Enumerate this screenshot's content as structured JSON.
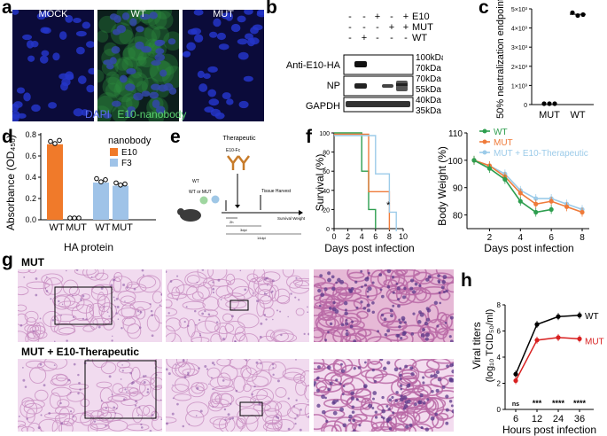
{
  "panels": {
    "a": "a",
    "b": "b",
    "c": "c",
    "d": "d",
    "e": "e",
    "f": "f",
    "g": "g",
    "h": "h"
  },
  "panel_a": {
    "images": [
      "MOCK",
      "WT",
      "MUT"
    ],
    "legend_dapi": "DAPI",
    "legend_e10": "E10-nanobody",
    "colors": {
      "dapi": "#3b50e0",
      "e10": "#3fbf5a"
    }
  },
  "panel_b": {
    "conditions": [
      {
        "label": "E10",
        "marks": [
          "-",
          "-",
          "+",
          "-",
          "+"
        ]
      },
      {
        "label": "MUT",
        "marks": [
          "-",
          "-",
          "-",
          "+",
          "+"
        ]
      },
      {
        "label": "WT",
        "marks": [
          "-",
          "+",
          "-",
          "-",
          "-"
        ]
      }
    ],
    "blots": [
      {
        "label": "Anti-E10-HA",
        "markers": [
          "100kDa",
          "70kDa"
        ]
      },
      {
        "label": "NP",
        "markers": [
          "70kDa",
          "55kDa"
        ]
      },
      {
        "label": "GAPDH",
        "markers": [
          "40kDa",
          "35kDa"
        ]
      }
    ]
  },
  "panel_c": {
    "ylabel": "50% neutralization endpoint",
    "y_ticks": [
      "0",
      "1×10³",
      "2×10³",
      "3×10³",
      "4×10³",
      "5×10³"
    ],
    "categories": [
      "MUT",
      "WT"
    ]
  },
  "panel_d": {
    "ylabel": "Absorbance (OD₄₅₀)",
    "y_ticks": [
      "0.0",
      "0.2",
      "0.4",
      "0.6",
      "0.8"
    ],
    "xlabel": "HA protein",
    "categories": [
      "WT",
      "MUT",
      "WT",
      "MUT"
    ],
    "legend_title": "nanobody",
    "legend": [
      "E10",
      "F3"
    ],
    "colors": {
      "E10": "#f07a2a",
      "F3": "#9fc3e8"
    }
  },
  "panel_e": {
    "therapeutic": "Therapeutic",
    "agent": "E10-Fc",
    "wt": "WT",
    "wt_or_mut": "WT or MUT",
    "harvest": "Tissue Harvest",
    "time_2h": "2h",
    "time_3dpi": "3dpi",
    "time_14dpi": "14dpi",
    "endpoint": "Survival Weight Loss Disease"
  },
  "panel_f": {
    "survival_ylabel": "Survival (%)",
    "survival_ticks_y": [
      "0",
      "20",
      "40",
      "60",
      "80",
      "100"
    ],
    "survival_ticks_x": [
      "0",
      "2",
      "4",
      "6",
      "8",
      "10"
    ],
    "weight_ylabel": "Body Weight (%)",
    "weight_ticks_y": [
      "80",
      "90",
      "100",
      "110"
    ],
    "weight_ticks_x": [
      "2",
      "4",
      "6",
      "8"
    ],
    "xlabel": "Days post infection",
    "star": "*",
    "legend": [
      "WT",
      "MUT",
      "MUT + E10-Therapeutic"
    ],
    "colors": {
      "WT": "#2e9e4f",
      "MUT": "#ef7b3a",
      "MUT + E10-Therapeutic": "#9ccbe9"
    }
  },
  "panel_g": {
    "row1": "MUT",
    "row2": "MUT + E10-Therapeutic"
  },
  "panel_h": {
    "ylabel": "Viral titers",
    "ylabel2": "(log₁₀ TCID₅₀/ml)",
    "y_ticks": [
      "0",
      "2",
      "4",
      "6",
      "8"
    ],
    "x_ticks": [
      "6",
      "12",
      "24",
      "36"
    ],
    "xlabel": "Hours post infection",
    "sig": [
      "ns",
      "***",
      "****",
      "****"
    ],
    "legend": [
      "WT",
      "MUT"
    ],
    "colors": {
      "WT": "#000000",
      "MUT": "#d82020"
    }
  },
  "chart_data": [
    {
      "type": "scatter",
      "categories": [
        "MUT",
        "WT"
      ],
      "series": [
        {
          "values": [
            [
              0,
              0,
              0
            ],
            [
              4800,
              4650,
              4700
            ]
          ]
        }
      ],
      "ylabel": "50% neutralization endpoint",
      "ylim": [
        0,
        5000
      ]
    },
    {
      "type": "bar",
      "categories": [
        "WT",
        "MUT",
        "WT",
        "MUT"
      ],
      "series": [
        {
          "name": "E10",
          "values": [
            0.71,
            0.0,
            null,
            null
          ]
        },
        {
          "name": "F3",
          "values": [
            null,
            null,
            0.35,
            0.32
          ]
        }
      ],
      "points": [
        [
          0.72,
          0.7,
          0.73
        ],
        [
          0.0,
          0.0,
          0.0
        ],
        [
          0.37,
          0.34,
          0.36
        ],
        [
          0.33,
          0.31,
          0.32
        ]
      ],
      "ylabel": "Absorbance (OD₄₅₀)",
      "xlabel": "HA protein",
      "ylim": [
        0,
        0.8
      ]
    },
    {
      "type": "line",
      "xlabel": "Days post infection",
      "ylabel": "Survival (%)",
      "xlim": [
        0,
        10
      ],
      "ylim": [
        0,
        100
      ],
      "series": [
        {
          "name": "WT",
          "x": [
            0,
            4,
            4,
            5,
            5,
            6,
            6
          ],
          "values": [
            100,
            100,
            60,
            60,
            20,
            20,
            0
          ]
        },
        {
          "name": "MUT",
          "x": [
            0,
            5,
            5,
            7,
            7,
            8,
            8
          ],
          "values": [
            100,
            100,
            40,
            40,
            40,
            40,
            0
          ]
        },
        {
          "name": "MUT + E10-Therapeutic",
          "x": [
            0,
            6,
            6,
            8,
            8,
            9,
            9
          ],
          "values": [
            100,
            100,
            60,
            60,
            20,
            20,
            0
          ]
        }
      ]
    },
    {
      "type": "line",
      "xlabel": "Days post infection",
      "ylabel": "Body Weight (%)",
      "ylim": [
        75,
        110
      ],
      "x": [
        1,
        2,
        3,
        4,
        5,
        6,
        7,
        8
      ],
      "series": [
        {
          "name": "WT",
          "values": [
            100,
            97,
            93,
            85,
            81,
            82,
            null,
            null
          ]
        },
        {
          "name": "MUT",
          "values": [
            100,
            98,
            94,
            88,
            84,
            85,
            83,
            81
          ]
        },
        {
          "name": "MUT + E10-Therapeutic",
          "values": [
            100,
            98,
            95,
            89,
            86,
            86,
            84,
            82
          ]
        }
      ]
    },
    {
      "type": "line",
      "xlabel": "Hours post infection",
      "ylabel": "Viral titers (log₁₀ TCID₅₀/ml)",
      "ylim": [
        0,
        8
      ],
      "categories": [
        "6",
        "12",
        "24",
        "36"
      ],
      "series": [
        {
          "name": "WT",
          "values": [
            2.7,
            6.5,
            7.1,
            7.2
          ]
        },
        {
          "name": "MUT",
          "values": [
            2.2,
            5.3,
            5.5,
            5.4
          ]
        }
      ]
    }
  ]
}
